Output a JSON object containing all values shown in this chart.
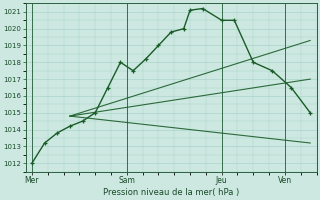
{
  "title": "",
  "xlabel": "Pression niveau de la mer( hPa )",
  "ylabel": "",
  "bg_color": "#cce8e0",
  "grid_color": "#aad4cc",
  "line_color": "#1a5c28",
  "ylim": [
    1011.5,
    1021.5
  ],
  "yticks": [
    1012,
    1013,
    1014,
    1015,
    1016,
    1017,
    1018,
    1019,
    1020,
    1021
  ],
  "xtick_labels": [
    "Mer",
    "Sam",
    "Jeu",
    "Ven"
  ],
  "xtick_positions": [
    0,
    30,
    60,
    80
  ],
  "xlim": [
    -2,
    90
  ],
  "series_main": {
    "x": [
      0,
      4,
      8,
      12,
      16,
      20,
      24,
      28,
      32,
      36,
      40,
      44,
      48,
      50,
      54,
      60,
      64,
      70,
      76,
      82,
      88
    ],
    "y": [
      1012.0,
      1013.2,
      1013.8,
      1014.2,
      1014.5,
      1015.0,
      1016.5,
      1018.0,
      1017.5,
      1018.2,
      1019.0,
      1019.8,
      1020.0,
      1021.1,
      1021.2,
      1020.5,
      1020.5,
      1018.0,
      1017.5,
      1016.5,
      1015.0
    ]
  },
  "series_line1": {
    "x": [
      12,
      88
    ],
    "y": [
      1014.8,
      1019.3
    ]
  },
  "series_line2": {
    "x": [
      12,
      88
    ],
    "y": [
      1014.8,
      1017.0
    ]
  },
  "series_line3": {
    "x": [
      12,
      88
    ],
    "y": [
      1014.8,
      1013.2
    ]
  },
  "vlines_x": [
    0,
    30,
    60,
    80
  ]
}
